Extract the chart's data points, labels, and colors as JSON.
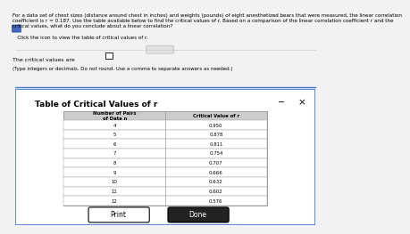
{
  "line1": "For a data set of chest sizes (distance around chest in inches) and weights (pounds) of eight anesthetized bears that were measured, the linear correlation",
  "line2": "coefficient is r = 0.187. Use the table available below to find the critical values of r. Based on a comparison of the linear correlation coefficient r and the",
  "line3": "critical values, what do you conclude about a linear correlation?",
  "click_text": "Click the icon to view the table of critical values of r.",
  "critical_label": "The critical values are",
  "critical_sub": "(Type integers or decimals. Do not round. Use a comma to separate answers as needed.)",
  "table_title": "Table of Critical Values of r",
  "col1_header": "Number of Pairs\nof Data n",
  "col2_header": "Critical Value of r",
  "n_values": [
    4,
    5,
    6,
    7,
    8,
    9,
    10,
    11,
    12
  ],
  "r_values": [
    "0.950",
    "0.878",
    "0.811",
    "0.754",
    "0.707",
    "0.666",
    "0.632",
    "0.602",
    "0.576"
  ],
  "bg_color": "#f2f2f2",
  "dialog_bg": "#ffffff",
  "dialog_border": "#4477cc",
  "icon_color": "#4466bb",
  "print_btn_color": "#ffffff",
  "done_btn_color": "#222222",
  "done_btn_text": "#ffffff",
  "separator_color": "#cccccc",
  "table_border_color": "#999999",
  "header_bg": "#cccccc"
}
